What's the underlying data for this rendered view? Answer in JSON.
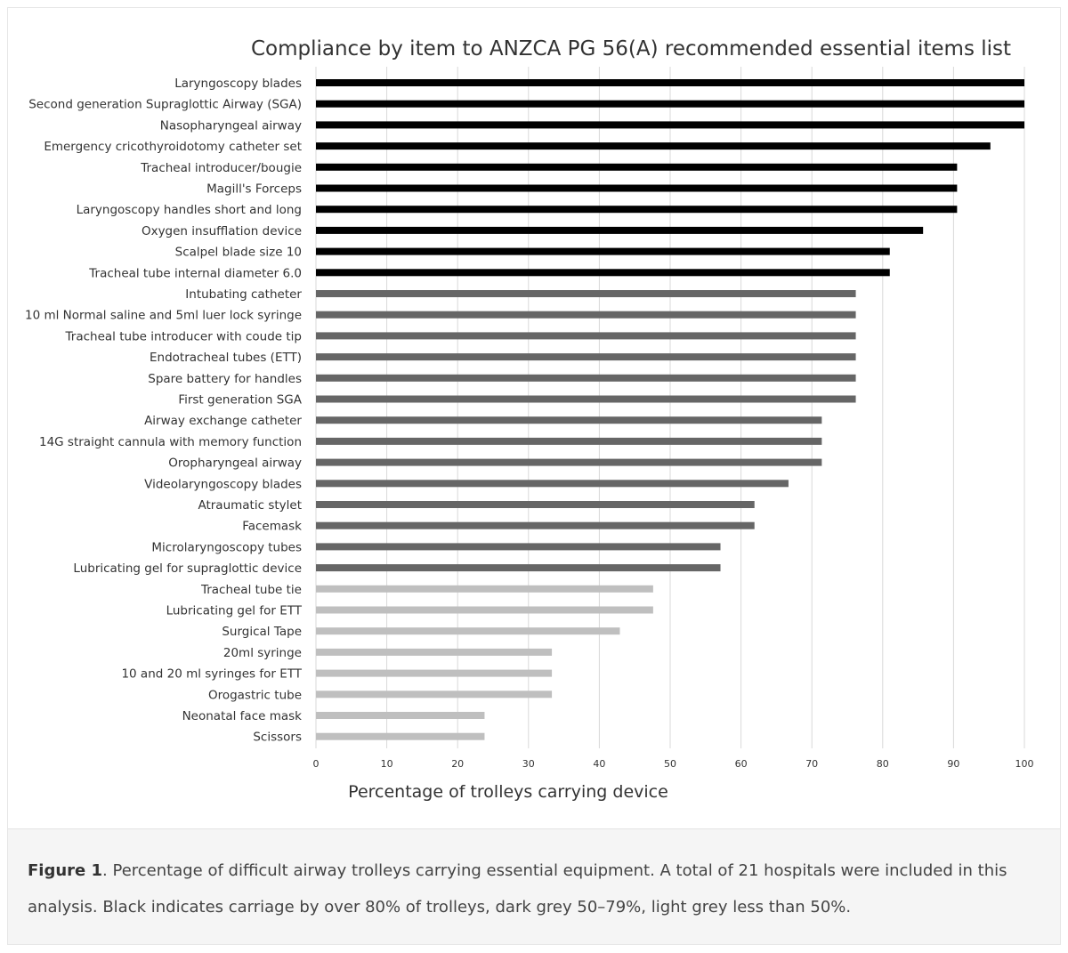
{
  "chart_data": {
    "type": "bar",
    "orientation": "horizontal",
    "title": "Compliance by item to ANZCA PG 56(A) recommended essential items list",
    "xlabel": "Percentage of trolleys carrying device",
    "ylabel": "",
    "xlim": [
      0,
      100
    ],
    "xticks": [
      0,
      10,
      20,
      30,
      40,
      50,
      60,
      70,
      80,
      90,
      100
    ],
    "grid": "vertical",
    "colors": {
      "black": "#000000",
      "dark_grey": "#666666",
      "light_grey": "#bfbfbf",
      "grid": "#d9d9d9",
      "text": "#333333"
    },
    "categories": [
      "Laryngoscopy blades",
      "Second generation Supraglottic Airway (SGA)",
      "Nasopharyngeal airway",
      "Emergency cricothyroidotomy catheter set",
      "Tracheal introducer/bougie",
      "Magill's Forceps",
      "Laryngoscopy handles short and long",
      "Oxygen insufflation device",
      "Scalpel blade size 10",
      "Tracheal tube internal diameter 6.0",
      "Intubating catheter",
      "10 ml Normal saline and 5ml luer lock syringe",
      "Tracheal tube introducer with coude tip",
      "Endotracheal tubes (ETT)",
      "Spare battery for handles",
      "First generation SGA",
      "Airway exchange catheter",
      "14G straight cannula with memory function",
      "Oropharyngeal airway",
      "Videolaryngoscopy blades",
      "Atraumatic stylet",
      "Facemask",
      "Microlaryngoscopy tubes",
      "Lubricating gel for supraglottic device",
      "Tracheal tube tie",
      "Lubricating gel for ETT",
      "Surgical Tape",
      "20ml syringe",
      "10 and 20 ml syringes for ETT",
      "Orogastric tube",
      "Neonatal face mask",
      "Scissors"
    ],
    "values": [
      100,
      100,
      100,
      95.2,
      90.5,
      90.5,
      90.5,
      85.7,
      81,
      81,
      76.2,
      76.2,
      76.2,
      76.2,
      76.2,
      76.2,
      71.4,
      71.4,
      71.4,
      66.7,
      61.9,
      61.9,
      57.1,
      57.1,
      47.6,
      47.6,
      42.9,
      33.3,
      33.3,
      33.3,
      23.8,
      23.8
    ],
    "color_groups": [
      "black",
      "black",
      "black",
      "black",
      "black",
      "black",
      "black",
      "black",
      "black",
      "black",
      "dark_grey",
      "dark_grey",
      "dark_grey",
      "dark_grey",
      "dark_grey",
      "dark_grey",
      "dark_grey",
      "dark_grey",
      "dark_grey",
      "dark_grey",
      "dark_grey",
      "dark_grey",
      "dark_grey",
      "dark_grey",
      "light_grey",
      "light_grey",
      "light_grey",
      "light_grey",
      "light_grey",
      "light_grey",
      "light_grey",
      "light_grey"
    ]
  },
  "caption": {
    "label": "Figure 1",
    "text": ". Percentage of difficult airway trolleys carrying essential equipment. A total of 21 hospitals were included in this analysis. Black indicates carriage by over 80% of trolleys, dark grey 50–79%, light grey less than 50%."
  }
}
